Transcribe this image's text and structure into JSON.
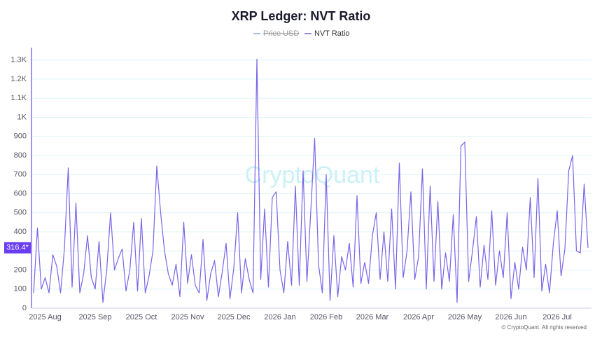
{
  "chart_data": {
    "type": "line",
    "title": "XRP Ledger: NVT Ratio",
    "hidden_series": [
      "Price USD"
    ],
    "hidden_color": "#7fa8d8",
    "watermark": "CryptoQuant",
    "footer": "© CryptoQuant. All rights reserved",
    "last_value_label": "316.4*",
    "ylim": [
      0,
      1365
    ],
    "yticks": [
      0,
      100,
      200,
      300,
      400,
      500,
      600,
      700,
      800,
      900,
      {
        "value": 1000,
        "label": "1K"
      },
      {
        "value": 1100,
        "label": "1.1K"
      },
      {
        "value": 1200,
        "label": "1.2K"
      },
      {
        "value": 1300,
        "label": "1.3K"
      }
    ],
    "grid": true,
    "categories": [
      null,
      null,
      null,
      "2025 Aug",
      null,
      null,
      null,
      null,
      null,
      null,
      null,
      null,
      null,
      null,
      null,
      null,
      "2025 Sep",
      null,
      null,
      null,
      null,
      null,
      null,
      null,
      null,
      null,
      null,
      null,
      "2025 Oct",
      null,
      null,
      null,
      null,
      null,
      null,
      null,
      null,
      null,
      null,
      null,
      "2025 Nov",
      null,
      null,
      null,
      null,
      null,
      null,
      null,
      null,
      null,
      null,
      null,
      "2025 Dec",
      null,
      null,
      null,
      null,
      null,
      null,
      null,
      null,
      null,
      null,
      null,
      "2026 Jan",
      null,
      null,
      null,
      null,
      null,
      null,
      null,
      null,
      null,
      null,
      null,
      "2026 Feb",
      null,
      null,
      null,
      null,
      null,
      null,
      null,
      null,
      null,
      null,
      null,
      "2026 Mar",
      null,
      null,
      null,
      null,
      null,
      null,
      null,
      null,
      null,
      null,
      null,
      "2026 Apr",
      null,
      null,
      null,
      null,
      null,
      null,
      null,
      null,
      null,
      null,
      null,
      "2026 May",
      null,
      null,
      null,
      null,
      null,
      null,
      null,
      null,
      null,
      null,
      null,
      "2026 Jun",
      null,
      null,
      null,
      null,
      null,
      null,
      null,
      null,
      null,
      null,
      null,
      "2026 Jul",
      null,
      null,
      null,
      null,
      null,
      null,
      null,
      null
    ],
    "series": [
      {
        "name": "NVT Ratio",
        "color": "#7b63e8",
        "values": [
          80,
          420,
          100,
          160,
          80,
          280,
          220,
          80,
          310,
          735,
          110,
          550,
          80,
          180,
          380,
          160,
          100,
          350,
          30,
          200,
          500,
          200,
          260,
          310,
          90,
          200,
          450,
          90,
          470,
          80,
          170,
          300,
          745,
          500,
          300,
          180,
          120,
          230,
          60,
          450,
          130,
          280,
          120,
          80,
          360,
          40,
          180,
          250,
          60,
          190,
          340,
          50,
          210,
          500,
          80,
          260,
          150,
          80,
          1305,
          150,
          520,
          110,
          580,
          610,
          200,
          80,
          350,
          120,
          640,
          120,
          720,
          140,
          510,
          890,
          230,
          80,
          700,
          40,
          380,
          60,
          270,
          200,
          340,
          110,
          590,
          130,
          240,
          130,
          380,
          500,
          150,
          400,
          140,
          520,
          100,
          760,
          160,
          300,
          610,
          150,
          270,
          730,
          100,
          640,
          140,
          560,
          100,
          290,
          140,
          490,
          30,
          850,
          870,
          140,
          300,
          480,
          110,
          330,
          150,
          510,
          120,
          300,
          160,
          500,
          50,
          240,
          100,
          320,
          200,
          580,
          160,
          680,
          90,
          230,
          80,
          340,
          510,
          170,
          310,
          720,
          800,
          300,
          290,
          650,
          316.4
        ]
      }
    ]
  }
}
